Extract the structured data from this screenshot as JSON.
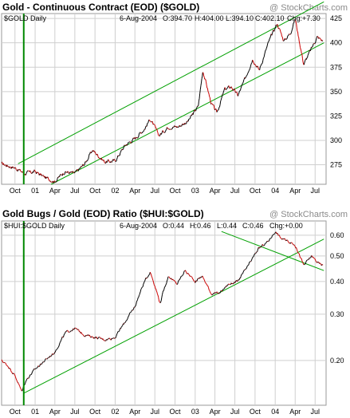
{
  "colors": {
    "background": "#ffffff",
    "panel_background": "#ffffff",
    "grid": "#cfcfcf",
    "frame": "#9a9a9a",
    "price_line": "#000000",
    "price_down": "#cc0000",
    "trendline": "#00a000",
    "marker_line": "#008800",
    "credit_text": "#8a8a8a"
  },
  "chart_data": [
    {
      "type": "line",
      "title": "Gold - Continuous Contract (EOD) ($GOLD)",
      "credit": "@ StockCharts.com",
      "symbol_label": "$GOLD Daily",
      "quote": {
        "date": "6-Aug-2004",
        "open": "O:394.70",
        "high": "H:404.00",
        "low": "L:394.10",
        "close": "C:402.10",
        "change": "Chg:+7.30"
      },
      "x_tick_labels": [
        "Oct",
        "01",
        "Apr",
        "Jul",
        "Oct",
        "02",
        "Apr",
        "Jul",
        "Oct",
        "03",
        "Apr",
        "Jul",
        "Oct",
        "04",
        "Apr",
        "Jul"
      ],
      "ylim": [
        255,
        430
      ],
      "y_tick_labels": [
        "275",
        "300",
        "325",
        "350",
        "375",
        "400",
        "425"
      ],
      "y_ticks": [
        275,
        300,
        325,
        350,
        375,
        400,
        425
      ],
      "grid": true,
      "scale": "linear",
      "series": [
        {
          "x": [
            "2000-08-01",
            "2000-10-01",
            "2000-11-15",
            "2001-01-01",
            "2001-02-15",
            "2001-04-01",
            "2001-05-15",
            "2001-07-01",
            "2001-08-15",
            "2001-09-20",
            "2001-11-15",
            "2002-01-01",
            "2002-02-15",
            "2002-04-01",
            "2002-05-15",
            "2002-06-10",
            "2002-07-20",
            "2002-09-01",
            "2002-10-15",
            "2002-12-01",
            "2003-01-15",
            "2003-02-05",
            "2003-03-15",
            "2003-04-10",
            "2003-05-15",
            "2003-06-15",
            "2003-07-15",
            "2003-08-15",
            "2003-09-20",
            "2003-10-20",
            "2003-12-01",
            "2004-01-10",
            "2004-02-10",
            "2004-03-10",
            "2004-04-01",
            "2004-05-10",
            "2004-06-10",
            "2004-07-10",
            "2004-08-06"
          ],
          "values": [
            276,
            272,
            266,
            268,
            262,
            258,
            268,
            266,
            276,
            290,
            278,
            279,
            295,
            302,
            312,
            322,
            305,
            314,
            314,
            320,
            335,
            372,
            338,
            328,
            352,
            355,
            346,
            362,
            384,
            372,
            400,
            420,
            402,
            410,
            425,
            378,
            392,
            406,
            402
          ]
        }
      ],
      "trend_lines": [
        {
          "from": {
            "x": "2000-10-15",
            "y": 276
          },
          "to": {
            "x": "2004-08-10",
            "y": 442
          }
        },
        {
          "from": {
            "x": "2001-03-15",
            "y": 255
          },
          "to": {
            "x": "2004-08-10",
            "y": 400
          }
        }
      ],
      "vertical_marker": {
        "x": "2000-11-10"
      }
    },
    {
      "type": "line",
      "title": "Gold Bugs / Gold (EOD) Ratio ($HUI:$GOLD)",
      "credit": "@ StockCharts.com",
      "symbol_label": "$HUI:$GOLD Daily",
      "quote": {
        "date": "6-Aug-2004",
        "open": "O:0.44",
        "high": "H:0.46",
        "low": "L:0.44",
        "close": "C:0.46",
        "change": "Chg:+0.00"
      },
      "x_tick_labels": [
        "Oct",
        "01",
        "Apr",
        "Jul",
        "Oct",
        "02",
        "Apr",
        "Jul",
        "Oct",
        "03",
        "Apr",
        "Jul",
        "Oct",
        "04",
        "Apr",
        "Jul"
      ],
      "ylim": [
        0.135,
        0.68
      ],
      "y_tick_labels": [
        "0.20",
        "0.30",
        "0.40",
        "0.50",
        "0.60"
      ],
      "y_ticks": [
        0.2,
        0.3,
        0.4,
        0.5,
        0.6
      ],
      "grid": true,
      "scale": "log",
      "series": [
        {
          "x": [
            "2000-08-01",
            "2000-09-01",
            "2000-10-01",
            "2000-11-01",
            "2000-11-20",
            "2001-01-01",
            "2001-02-15",
            "2001-04-01",
            "2001-05-20",
            "2001-07-01",
            "2001-08-15",
            "2001-10-01",
            "2001-11-15",
            "2002-01-01",
            "2002-02-15",
            "2002-04-01",
            "2002-05-15",
            "2002-06-10",
            "2002-07-25",
            "2002-09-01",
            "2002-10-10",
            "2002-11-15",
            "2003-01-01",
            "2003-02-01",
            "2003-03-15",
            "2003-04-20",
            "2003-06-01",
            "2003-07-15",
            "2003-09-01",
            "2003-10-15",
            "2003-12-01",
            "2004-01-01",
            "2004-02-01",
            "2004-03-01",
            "2004-04-01",
            "2004-05-10",
            "2004-06-15",
            "2004-07-15",
            "2004-08-06"
          ],
          "values": [
            0.2,
            0.19,
            0.175,
            0.152,
            0.168,
            0.185,
            0.2,
            0.215,
            0.255,
            0.265,
            0.25,
            0.245,
            0.24,
            0.245,
            0.28,
            0.32,
            0.4,
            0.435,
            0.33,
            0.42,
            0.39,
            0.44,
            0.4,
            0.42,
            0.36,
            0.36,
            0.39,
            0.4,
            0.46,
            0.53,
            0.57,
            0.62,
            0.58,
            0.57,
            0.55,
            0.46,
            0.5,
            0.47,
            0.46
          ]
        }
      ],
      "trend_lines": [
        {
          "from": {
            "x": "2000-11-10",
            "y": 0.15
          },
          "to": {
            "x": "2004-08-10",
            "y": 0.58
          }
        },
        {
          "from": {
            "x": "2003-05-01",
            "y": 0.62
          },
          "to": {
            "x": "2004-08-10",
            "y": 0.44
          }
        }
      ],
      "vertical_marker": {
        "x": "2000-11-10"
      }
    }
  ]
}
